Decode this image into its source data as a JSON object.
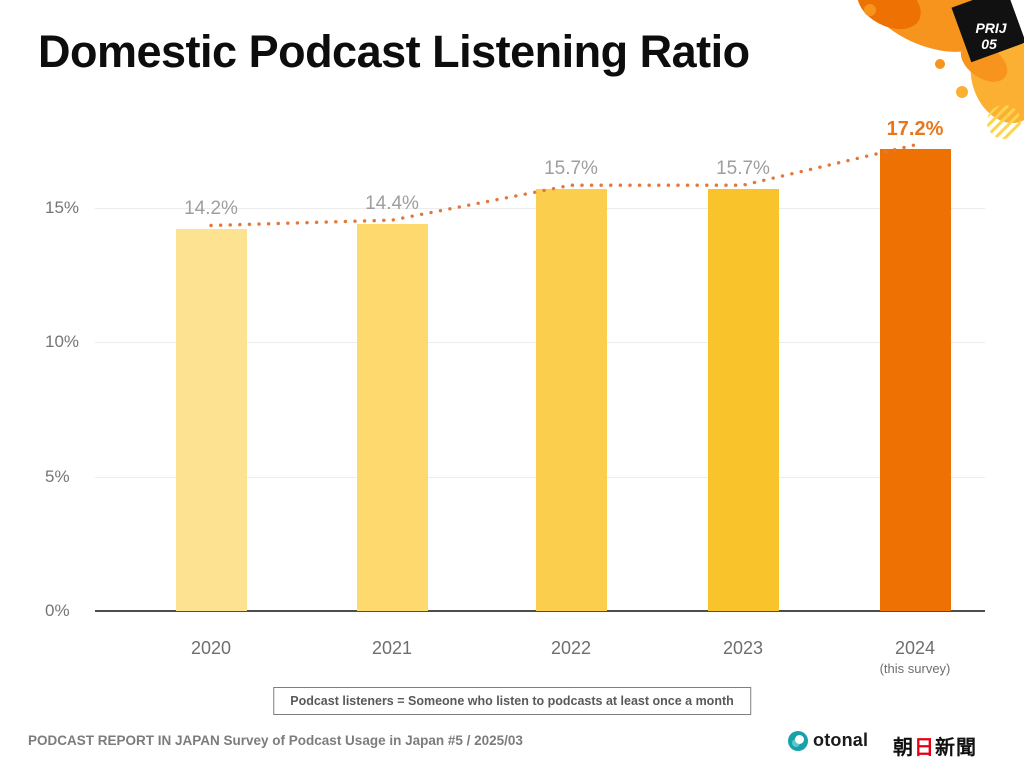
{
  "page": {
    "title": "Domestic Podcast Listening Ratio",
    "badge": {
      "line1": "PRIJ",
      "line2": "05"
    }
  },
  "chart_data": {
    "type": "bar",
    "title": "Domestic Podcast Listening Ratio",
    "categories": [
      "2020",
      "2021",
      "2022",
      "2023",
      "2024"
    ],
    "x_sublabels": [
      "",
      "",
      "",
      "",
      "(this survey)"
    ],
    "values": [
      14.2,
      14.4,
      15.7,
      15.7,
      17.2
    ],
    "value_labels": [
      "14.2%",
      "14.4%",
      "15.7%",
      "15.7%",
      "17.2%"
    ],
    "bar_colors": [
      "#FCE291",
      "#FDD96E",
      "#FCCE4D",
      "#F9C32C",
      "#EE7203"
    ],
    "value_label_colors": [
      "#9e9e9e",
      "#9e9e9e",
      "#9e9e9e",
      "#9e9e9e",
      "#E8761B"
    ],
    "highlight_index": 4,
    "yticks": [
      0,
      5,
      10,
      15
    ],
    "ytick_labels": [
      "0%",
      "5%",
      "10%",
      "15%"
    ],
    "ylim": [
      0,
      18
    ],
    "grid": true,
    "legend": false,
    "trendline": {
      "style": "dotted",
      "color": "#E2783B",
      "connects": "bar tops"
    }
  },
  "note": {
    "text": "Podcast listeners = Someone who listen to podcasts at least once a month"
  },
  "footer": {
    "source": "PODCAST REPORT IN JAPAN Survey of Podcast Usage in Japan #5 / 2025/03",
    "logos": {
      "otonal": "otonal",
      "asahi_part1": "朝",
      "asahi_part2": "日",
      "asahi_part3": "新聞"
    }
  },
  "colors": {
    "accent_orange": "#EE7203",
    "splash_orange": "#F7941D",
    "splash_amber": "#FBB034",
    "badge_bg": "#111111",
    "badge_text": "#ffffff"
  }
}
